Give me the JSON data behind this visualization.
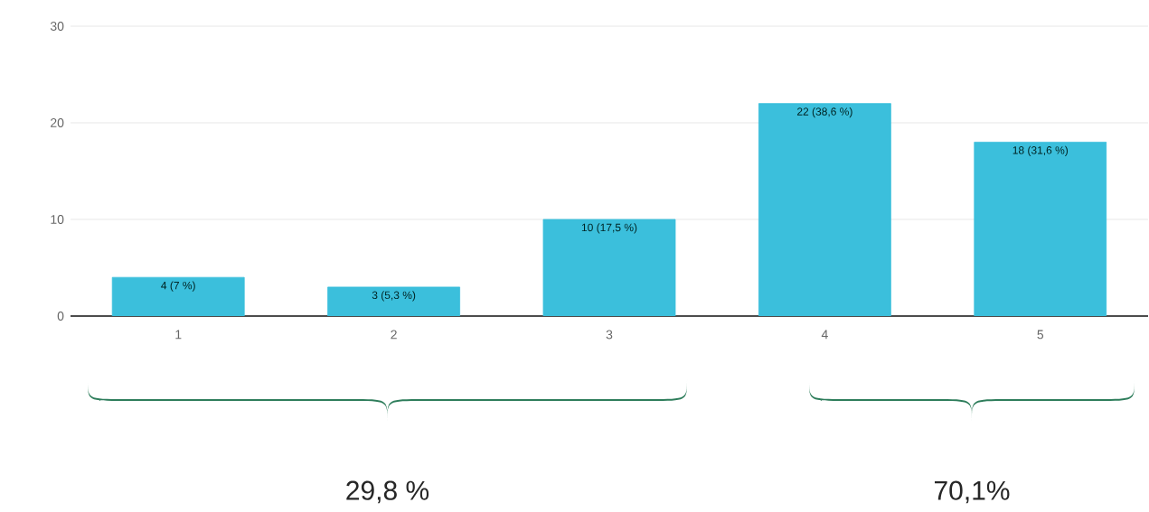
{
  "chart_data": {
    "type": "bar",
    "categories": [
      "1",
      "2",
      "3",
      "4",
      "5"
    ],
    "values": [
      4,
      3,
      10,
      22,
      18
    ],
    "value_labels": [
      "4 (7 %)",
      "3 (5,3 %)",
      "10 (17,5 %)",
      "22 (38,6 %)",
      "18 (31,6 %)"
    ],
    "color": "#3bbfdc",
    "ylim": [
      0,
      30
    ],
    "yticks": [
      0,
      10,
      20,
      30
    ],
    "grid": "y",
    "annotations": [
      "29,8 %",
      "70,1%"
    ]
  }
}
